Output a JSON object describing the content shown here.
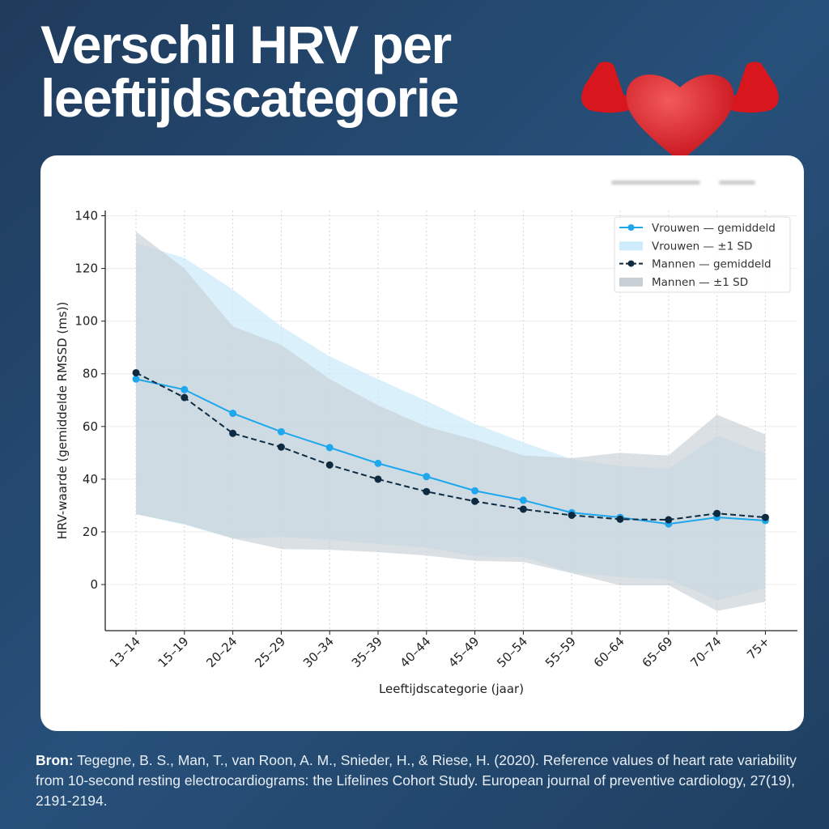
{
  "header": {
    "title_line1": "Verschil HRV per",
    "title_line2": "leeftijdscategorie",
    "icon": "strong-heart-icon"
  },
  "source": {
    "label": "Bron:",
    "text": " Tegegne, B. S., Man, T., van Roon, A. M., Snieder, H., & Riese, H. (2020). Reference values of heart rate variability from 10-second resting electrocardiograms: the Lifelines Cohort Study. European journal of preventive cardiology, 27(19), 2191-2194."
  },
  "colors": {
    "women": "#1ea7ec",
    "women_band": "#cdebfa",
    "men": "#0d2a40",
    "men_band": "#c8d0d6",
    "background": "#24476b"
  },
  "chart_data": {
    "type": "line",
    "xlabel": "Leeftijdscategorie (jaar)",
    "ylabel": "HRV-waarde (gemiddelde RMSSD (ms))",
    "ylim": [
      -17.5,
      142
    ],
    "yticks": [
      0,
      20,
      40,
      60,
      80,
      100,
      120,
      140
    ],
    "grid": true,
    "legend_placement": "top-right",
    "categories": [
      "13–14",
      "15–19",
      "20–24",
      "25–29",
      "30–34",
      "35–39",
      "40–44",
      "45–49",
      "50–54",
      "55–59",
      "60–64",
      "65–69",
      "70–74",
      "75+"
    ],
    "series": [
      {
        "name": "Vrouwen — gemiddeld",
        "values": [
          78,
          74,
          65,
          58,
          52,
          46,
          41,
          35.6,
          32,
          27.3,
          25.5,
          23,
          25.5,
          24.3
        ]
      },
      {
        "name": "Mannen — gemiddeld",
        "values": [
          80.4,
          71,
          57.4,
          52.2,
          45.4,
          40,
          35.3,
          31.6,
          28.6,
          26.3,
          24.8,
          24.6,
          27,
          25.5
        ]
      }
    ],
    "bands": [
      {
        "name": "Vrouwen — ±1 SD",
        "upper": [
          129.5,
          124,
          112,
          98,
          86.6,
          78,
          69.7,
          61,
          54,
          47.6,
          45,
          44,
          56.5,
          49.7
        ],
        "lower": [
          26.7,
          22.7,
          17.5,
          18,
          17,
          15.4,
          14,
          10.7,
          10.4,
          4.6,
          2.8,
          2,
          -6,
          -1.5
        ]
      },
      {
        "name": "Mannen — ±1 SD",
        "upper": [
          134,
          120,
          98,
          91,
          78,
          68,
          60,
          55,
          49,
          48,
          50,
          49,
          64.5,
          57
        ],
        "lower": [
          26.7,
          23,
          17.5,
          13.5,
          13.2,
          12.3,
          11,
          9,
          8.6,
          4.3,
          -0.3,
          -0.3,
          -10,
          -6.5
        ]
      }
    ]
  }
}
